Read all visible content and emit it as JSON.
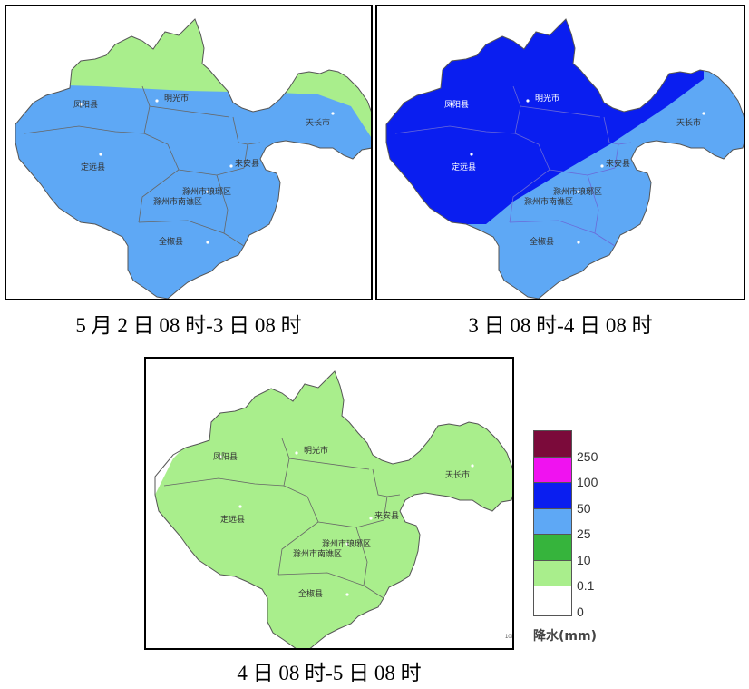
{
  "panels": [
    {
      "caption": "5 月 2 日 08 时-3 日 08 时"
    },
    {
      "caption": "3 日 08 时-4 日 08 时"
    },
    {
      "caption": "4 日 08 时-5 日 08 时"
    }
  ],
  "places": {
    "fengyang": "凤阳县",
    "mingguang": "明光市",
    "tianchang": "天长市",
    "dingyuan": "定远县",
    "laian": "来安县",
    "langya": "滁州市琅琊区",
    "nanqiao": "滁州市南谯区",
    "quanjiao": "全椒县"
  },
  "legend": {
    "title": "降水(mm)",
    "items": [
      {
        "label": "250",
        "color": "#7b0a3a"
      },
      {
        "label": "100",
        "color": "#f012f0"
      },
      {
        "label": "50",
        "color": "#0a1ef0"
      },
      {
        "label": "25",
        "color": "#5ea8f5"
      },
      {
        "label": "10",
        "color": "#36b43c"
      },
      {
        "label": "0.1",
        "color": "#a9ee8c"
      },
      {
        "label": "0",
        "color": "#ffffff"
      }
    ]
  },
  "scale_text": "100"
}
